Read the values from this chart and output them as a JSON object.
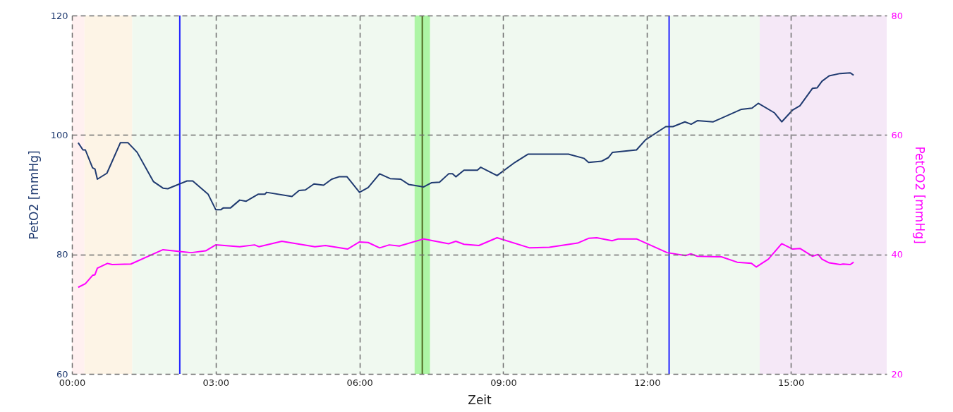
{
  "chart_data": {
    "type": "line",
    "xlabel": "Zeit",
    "ylabel": "PetO2 [mmHg]",
    "y2label": "PetCO2 [mmHg]",
    "xlim": [
      0,
      17
    ],
    "xticks": [
      {
        "value": 0,
        "label": "00:00"
      },
      {
        "value": 3,
        "label": "03:00"
      },
      {
        "value": 6,
        "label": "06:00"
      },
      {
        "value": 9,
        "label": "09:00"
      },
      {
        "value": 12,
        "label": "12:00"
      },
      {
        "value": 15,
        "label": "15:00"
      }
    ],
    "ylim": [
      60,
      120
    ],
    "yticks": [
      60,
      80,
      100,
      120
    ],
    "y2lim": [
      20,
      80
    ],
    "y2ticks": [
      20,
      40,
      60,
      80
    ],
    "grid": true,
    "series": [
      {
        "color": "#1f3a70",
        "x": [
          0.13,
          0.23,
          0.28,
          0.43,
          0.48,
          0.53,
          0.73,
          1.01,
          1.17,
          1.36,
          1.7,
          1.9,
          2.0,
          2.4,
          2.52,
          2.84,
          3.0,
          3.11,
          3.16,
          3.31,
          3.5,
          3.63,
          3.89,
          4.03,
          4.06,
          4.59,
          4.74,
          4.87,
          5.05,
          5.25,
          5.42,
          5.57,
          5.74,
          6.0,
          6.18,
          6.42,
          6.64,
          6.86,
          7.03,
          7.34,
          7.5,
          7.67,
          7.86,
          7.94,
          8.01,
          8.18,
          8.46,
          8.53,
          8.87,
          9.24,
          9.52,
          10.36,
          10.68,
          10.78,
          11.05,
          11.19,
          11.28,
          11.78,
          11.97,
          12.39,
          12.54,
          12.79,
          12.92,
          13.05,
          13.38,
          13.97,
          14.19,
          14.32,
          14.66,
          14.81,
          15.04,
          15.19,
          15.45,
          15.55,
          15.65,
          15.8,
          16.03,
          16.24,
          16.31
        ],
        "values": [
          98.7,
          97.5,
          97.5,
          94.5,
          94.3,
          92.6,
          93.6,
          98.7,
          98.7,
          97.1,
          92.2,
          91.1,
          91.0,
          92.3,
          92.3,
          90.1,
          87.5,
          87.5,
          87.8,
          87.8,
          89.1,
          88.9,
          90.1,
          90.1,
          90.4,
          89.7,
          90.7,
          90.8,
          91.8,
          91.6,
          92.6,
          93.0,
          93.0,
          90.4,
          91.2,
          93.5,
          92.7,
          92.6,
          91.7,
          91.3,
          92.0,
          92.1,
          93.5,
          93.5,
          93.0,
          94.1,
          94.1,
          94.6,
          93.2,
          95.4,
          96.8,
          96.8,
          96.1,
          95.4,
          95.6,
          96.2,
          97.1,
          97.5,
          99.2,
          101.4,
          101.4,
          102.2,
          101.8,
          102.4,
          102.2,
          104.3,
          104.5,
          105.3,
          103.7,
          102.2,
          104.2,
          104.9,
          107.8,
          107.9,
          109.0,
          109.9,
          110.3,
          110.4,
          110.0
        ]
      },
      {
        "color": "#ff00ff",
        "axis": "y2",
        "x": [
          0.13,
          0.28,
          0.43,
          0.48,
          0.53,
          0.74,
          0.84,
          1.23,
          1.9,
          2.25,
          2.49,
          2.79,
          3.0,
          3.5,
          3.81,
          3.9,
          4.38,
          5.07,
          5.29,
          5.75,
          6.0,
          6.18,
          6.42,
          6.62,
          6.83,
          7.34,
          7.86,
          8.01,
          8.18,
          8.49,
          8.87,
          9.55,
          9.96,
          10.55,
          10.78,
          10.95,
          11.27,
          11.4,
          11.78,
          12.42,
          12.8,
          12.92,
          13.05,
          13.55,
          13.88,
          14.18,
          14.28,
          14.53,
          14.81,
          15.04,
          15.19,
          15.45,
          15.57,
          15.65,
          15.8,
          16.03,
          16.09,
          16.24,
          16.31
        ],
        "values": [
          34.5,
          35.1,
          36.5,
          36.6,
          37.7,
          38.5,
          38.3,
          38.4,
          40.8,
          40.5,
          40.3,
          40.6,
          41.6,
          41.3,
          41.6,
          41.3,
          42.2,
          41.3,
          41.5,
          40.9,
          42.1,
          42.0,
          41.1,
          41.6,
          41.4,
          42.6,
          41.8,
          42.2,
          41.7,
          41.5,
          42.8,
          41.1,
          41.2,
          41.9,
          42.7,
          42.8,
          42.3,
          42.6,
          42.6,
          40.3,
          39.8,
          40.1,
          39.7,
          39.6,
          38.7,
          38.5,
          37.9,
          39.2,
          41.8,
          40.9,
          41.0,
          39.7,
          40.0,
          39.2,
          38.6,
          38.3,
          38.4,
          38.3,
          38.7
        ]
      }
    ],
    "bands": [
      {
        "axis": "x",
        "from": 0,
        "to": 0.26,
        "color": "#fff0f0"
      },
      {
        "axis": "x",
        "from": 0.26,
        "to": 1.26,
        "color": "#fdf4e6"
      },
      {
        "axis": "x",
        "from": 1.26,
        "to": 14.35,
        "color": "#f0f9f0"
      },
      {
        "axis": "x",
        "from": 14.35,
        "to": 17,
        "color": "#f5e8f7"
      },
      {
        "axis": "x",
        "from": 7.15,
        "to": 7.47,
        "color": "#adf5a5"
      }
    ],
    "ref_lines": [
      {
        "axis": "x",
        "value": 2.25,
        "color": "#2222ff"
      },
      {
        "axis": "x",
        "value": 7.31,
        "color": "#4f6a20"
      },
      {
        "axis": "x",
        "value": 12.46,
        "color": "#2222ff"
      }
    ]
  }
}
